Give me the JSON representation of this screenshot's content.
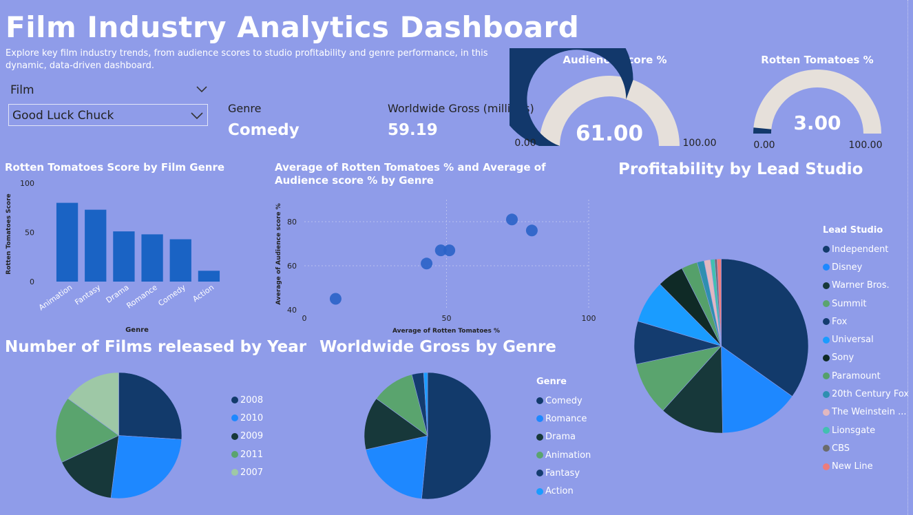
{
  "header": {
    "title": "Film Industry Analytics Dashboard",
    "subtitle": "Explore key film industry trends, from audience scores to studio profitability and genre performance, in this dynamic, data-driven dashboard."
  },
  "slicer": {
    "label": "Film",
    "value": "Good Luck Chuck",
    "chevron_icon": "chevron-down-icon"
  },
  "cards": {
    "genre_label": "Genre",
    "genre_value": "Comedy",
    "gross_label": "Worldwide Gross (millions)",
    "gross_value": "59.19"
  },
  "colors": {
    "background": "#8f9ce9",
    "bar": "#1a63c4",
    "scatter": "#2a63c8",
    "gauge_fill": "#12386b",
    "gauge_track": "#e6e0da"
  },
  "chart_data": [
    {
      "id": "audience-gauge",
      "type": "gauge",
      "title": "Audience Score %",
      "value": 61,
      "value_label": "61.00",
      "min_label": "0.00",
      "max_label": "100.00",
      "range": [
        0,
        100
      ]
    },
    {
      "id": "rt-gauge",
      "type": "gauge",
      "title": "Rotten Tomatoes %",
      "value": 3,
      "value_label": "3.00",
      "min_label": "0.00",
      "max_label": "100.00",
      "range": [
        0,
        100
      ]
    },
    {
      "id": "rt-bar",
      "type": "bar",
      "title": "Rotten Tomatoes Score by Film Genre",
      "xlabel": "Genre",
      "ylabel": "Rotten Tomatoes Score",
      "categories": [
        "Animation",
        "Fantasy",
        "Drama",
        "Romance",
        "Comedy",
        "Action"
      ],
      "values": [
        80,
        73,
        51,
        48,
        43,
        11
      ],
      "ylim": [
        0,
        100
      ],
      "yticks": [
        0,
        50,
        100
      ],
      "grid": false
    },
    {
      "id": "genre-scatter",
      "type": "scatter",
      "title": "Average of Rotten Tomatoes % and Average of Audience score % by Genre",
      "xlabel": "Average of Rotten Tomatoes %",
      "ylabel": "Average of Audience score %",
      "points": [
        {
          "x": 11,
          "y": 45
        },
        {
          "x": 43,
          "y": 61
        },
        {
          "x": 48,
          "y": 67
        },
        {
          "x": 51,
          "y": 67
        },
        {
          "x": 73,
          "y": 81
        },
        {
          "x": 80,
          "y": 76
        }
      ],
      "xlim": [
        0,
        100
      ],
      "ylim": [
        40,
        90
      ],
      "xticks": [
        0,
        50,
        100
      ],
      "yticks": [
        40,
        60,
        80
      ],
      "grid": true
    },
    {
      "id": "year-pie",
      "type": "pie",
      "title": "Number of Films released by Year",
      "legend_position": "right",
      "slices": [
        {
          "label": "2008",
          "value": 26,
          "color": "#123a6b"
        },
        {
          "label": "2010",
          "value": 26,
          "color": "#1e88ff"
        },
        {
          "label": "2009",
          "value": 16,
          "color": "#17383a"
        },
        {
          "label": "2011",
          "value": 17,
          "color": "#5aa46e"
        },
        {
          "label": "2007",
          "value": 15,
          "color": "#9ec8a6"
        }
      ]
    },
    {
      "id": "gross-pie",
      "type": "pie",
      "title": "Worldwide Gross by Genre",
      "legend_title": "Genre",
      "legend_position": "right",
      "slices": [
        {
          "label": "Comedy",
          "value": 51.5,
          "color": "#123a6b"
        },
        {
          "label": "Romance",
          "value": 20,
          "color": "#1e88ff"
        },
        {
          "label": "Drama",
          "value": 13.5,
          "color": "#17383a"
        },
        {
          "label": "Animation",
          "value": 11,
          "color": "#5aa46e"
        },
        {
          "label": "Fantasy",
          "value": 3,
          "color": "#143c6f"
        },
        {
          "label": "Action",
          "value": 1,
          "color": "#1a9cff"
        }
      ]
    },
    {
      "id": "studio-pie",
      "type": "pie",
      "title": "Profitability by Lead Studio",
      "legend_title": "Lead Studio",
      "legend_position": "right",
      "slices": [
        {
          "label": "Independent",
          "value": 35,
          "color": "#123a6b"
        },
        {
          "label": "Disney",
          "value": 15,
          "color": "#1e88ff"
        },
        {
          "label": "Warner Bros.",
          "value": 12,
          "color": "#17383a"
        },
        {
          "label": "Summit",
          "value": 10,
          "color": "#5aa46e"
        },
        {
          "label": "Fox",
          "value": 8,
          "color": "#143c6f"
        },
        {
          "label": "Universal",
          "value": 8,
          "color": "#1a9cff"
        },
        {
          "label": "Sony",
          "value": 5,
          "color": "#0f2a26"
        },
        {
          "label": "Paramount",
          "value": 3,
          "color": "#55a06a"
        },
        {
          "label": "20th Century Fox",
          "value": 1.3,
          "color": "#2f8fb0"
        },
        {
          "label": "The Weinstein ...",
          "value": 1.2,
          "color": "#e2b8c0"
        },
        {
          "label": "Lionsgate",
          "value": 0.8,
          "color": "#42c0b0"
        },
        {
          "label": "CBS",
          "value": 0.4,
          "color": "#6b6b6b"
        },
        {
          "label": "New Line",
          "value": 0.8,
          "color": "#ee7c7c"
        }
      ]
    }
  ]
}
